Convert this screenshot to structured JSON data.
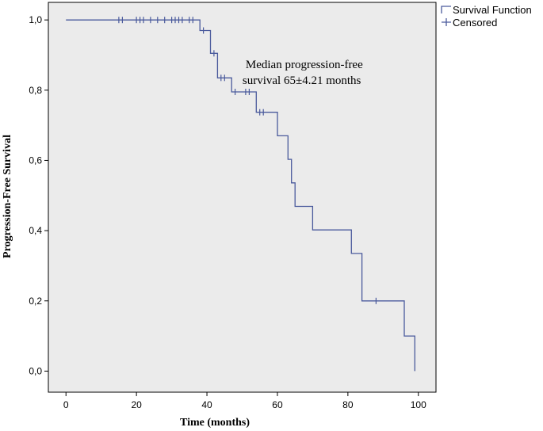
{
  "chart_data": {
    "type": "line",
    "xlabel": "Time (months)",
    "ylabel": "Progression-Free Survival",
    "xlim": [
      -5,
      105
    ],
    "ylim": [
      -0.06,
      1.05
    ],
    "x_ticks": [
      0,
      20,
      40,
      60,
      80,
      100
    ],
    "x_tick_labels": [
      "0",
      "20",
      "40",
      "60",
      "80",
      "100"
    ],
    "y_ticks": [
      0,
      0.2,
      0.4,
      0.6,
      0.8,
      1.0
    ],
    "y_tick_labels": [
      "0,0",
      "0,2",
      "0,4",
      "0,6",
      "0,8",
      "1,0"
    ],
    "grid": false,
    "background_color": "#ebebeb",
    "line_color": "#4a5a9c",
    "legend": {
      "placement": "top-right-outside",
      "items": [
        "Survival Function",
        "Censored"
      ]
    },
    "annotation": {
      "lines": [
        "Median progression-free",
        "survival 65±4.21 months"
      ],
      "x": 51,
      "y": 0.84
    },
    "series": [
      {
        "name": "Survival Function",
        "step_points": [
          [
            0,
            1.0
          ],
          [
            38,
            1.0
          ],
          [
            38,
            0.97
          ],
          [
            41,
            0.97
          ],
          [
            41,
            0.905
          ],
          [
            43,
            0.905
          ],
          [
            43,
            0.835
          ],
          [
            47,
            0.835
          ],
          [
            47,
            0.795
          ],
          [
            54,
            0.795
          ],
          [
            54,
            0.737
          ],
          [
            60,
            0.737
          ],
          [
            60,
            0.67
          ],
          [
            63,
            0.67
          ],
          [
            63,
            0.603
          ],
          [
            64,
            0.603
          ],
          [
            64,
            0.536
          ],
          [
            65,
            0.536
          ],
          [
            65,
            0.469
          ],
          [
            70,
            0.469
          ],
          [
            70,
            0.402
          ],
          [
            81,
            0.402
          ],
          [
            81,
            0.335
          ],
          [
            84,
            0.335
          ],
          [
            84,
            0.2
          ],
          [
            96,
            0.2
          ],
          [
            96,
            0.1
          ],
          [
            99,
            0.1
          ],
          [
            99,
            0.0
          ]
        ]
      },
      {
        "name": "Censored",
        "points": [
          [
            15,
            1.0
          ],
          [
            16,
            1.0
          ],
          [
            20,
            1.0
          ],
          [
            21,
            1.0
          ],
          [
            22,
            1.0
          ],
          [
            24,
            1.0
          ],
          [
            26,
            1.0
          ],
          [
            28,
            1.0
          ],
          [
            30,
            1.0
          ],
          [
            31,
            1.0
          ],
          [
            32,
            1.0
          ],
          [
            33,
            1.0
          ],
          [
            35,
            1.0
          ],
          [
            36,
            1.0
          ],
          [
            39,
            0.97
          ],
          [
            42,
            0.905
          ],
          [
            44,
            0.835
          ],
          [
            45,
            0.835
          ],
          [
            48,
            0.795
          ],
          [
            51,
            0.795
          ],
          [
            52,
            0.795
          ],
          [
            55,
            0.737
          ],
          [
            56,
            0.737
          ],
          [
            88,
            0.2
          ]
        ]
      }
    ]
  }
}
